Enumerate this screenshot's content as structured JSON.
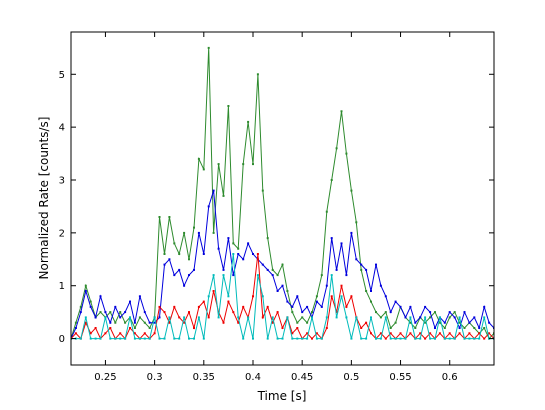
{
  "chart_data": {
    "type": "line",
    "xlabel": "Time [s]",
    "ylabel": "Normalized Rate [counts/s]",
    "xlim": [
      0.215,
      0.645
    ],
    "ylim": [
      -0.5,
      5.8
    ],
    "xticks": [
      0.25,
      0.3,
      0.35,
      0.4,
      0.45,
      0.5,
      0.55,
      0.6
    ],
    "yticks": [
      0,
      1,
      2,
      3,
      4,
      5
    ],
    "grid": false,
    "legend": "none",
    "series": [
      {
        "color": "#2e8b2e",
        "x": [
          0.215,
          0.22,
          0.225,
          0.23,
          0.235,
          0.24,
          0.245,
          0.25,
          0.255,
          0.26,
          0.265,
          0.27,
          0.275,
          0.28,
          0.285,
          0.29,
          0.295,
          0.3,
          0.305,
          0.31,
          0.315,
          0.32,
          0.325,
          0.33,
          0.335,
          0.34,
          0.345,
          0.35,
          0.355,
          0.36,
          0.365,
          0.37,
          0.375,
          0.38,
          0.385,
          0.39,
          0.395,
          0.4,
          0.405,
          0.41,
          0.415,
          0.42,
          0.425,
          0.43,
          0.435,
          0.44,
          0.445,
          0.45,
          0.455,
          0.46,
          0.465,
          0.47,
          0.475,
          0.48,
          0.485,
          0.49,
          0.495,
          0.5,
          0.505,
          0.51,
          0.515,
          0.52,
          0.525,
          0.53,
          0.535,
          0.54,
          0.545,
          0.55,
          0.555,
          0.56,
          0.565,
          0.57,
          0.575,
          0.58,
          0.585,
          0.59,
          0.595,
          0.6,
          0.605,
          0.61,
          0.615,
          0.62,
          0.625,
          0.63,
          0.635,
          0.64,
          0.645
        ],
        "y": [
          0.0,
          0.3,
          0.6,
          1.0,
          0.7,
          0.4,
          0.5,
          0.4,
          0.5,
          0.3,
          0.5,
          0.3,
          0.4,
          0.2,
          0.4,
          0.3,
          0.2,
          0.4,
          2.3,
          1.6,
          2.3,
          1.8,
          1.6,
          2.0,
          1.5,
          2.1,
          3.4,
          3.2,
          5.5,
          2.0,
          3.3,
          2.7,
          4.4,
          1.8,
          1.7,
          3.3,
          4.1,
          3.3,
          5.0,
          2.8,
          1.9,
          1.3,
          1.2,
          1.4,
          0.9,
          0.5,
          0.3,
          0.4,
          0.3,
          0.5,
          0.8,
          1.2,
          2.4,
          3.0,
          3.6,
          4.3,
          3.5,
          2.8,
          2.2,
          1.3,
          0.9,
          0.7,
          0.5,
          0.4,
          0.5,
          0.2,
          0.3,
          0.6,
          0.4,
          0.3,
          0.2,
          0.4,
          0.3,
          0.4,
          0.5,
          0.3,
          0.2,
          0.4,
          0.5,
          0.3,
          0.2,
          0.3,
          0.2,
          0.1,
          0.2,
          0.0,
          0.1
        ]
      },
      {
        "color": "#0000dd",
        "x": [
          0.215,
          0.22,
          0.225,
          0.23,
          0.235,
          0.24,
          0.245,
          0.25,
          0.255,
          0.26,
          0.265,
          0.27,
          0.275,
          0.28,
          0.285,
          0.29,
          0.295,
          0.3,
          0.305,
          0.31,
          0.315,
          0.32,
          0.325,
          0.33,
          0.335,
          0.34,
          0.345,
          0.35,
          0.355,
          0.36,
          0.365,
          0.37,
          0.375,
          0.38,
          0.385,
          0.39,
          0.395,
          0.4,
          0.405,
          0.41,
          0.415,
          0.42,
          0.425,
          0.43,
          0.435,
          0.44,
          0.445,
          0.45,
          0.455,
          0.46,
          0.465,
          0.47,
          0.475,
          0.48,
          0.485,
          0.49,
          0.495,
          0.5,
          0.505,
          0.51,
          0.515,
          0.52,
          0.525,
          0.53,
          0.535,
          0.54,
          0.545,
          0.55,
          0.555,
          0.56,
          0.565,
          0.57,
          0.575,
          0.58,
          0.585,
          0.59,
          0.595,
          0.6,
          0.605,
          0.61,
          0.615,
          0.62,
          0.625,
          0.63,
          0.635,
          0.64,
          0.645
        ],
        "y": [
          0.0,
          0.2,
          0.5,
          0.9,
          0.6,
          0.4,
          0.8,
          0.5,
          0.3,
          0.6,
          0.4,
          0.5,
          0.7,
          0.3,
          0.8,
          0.5,
          0.3,
          0.3,
          0.4,
          1.4,
          1.5,
          1.2,
          1.3,
          1.0,
          1.2,
          1.3,
          2.0,
          1.6,
          2.5,
          2.8,
          1.7,
          1.3,
          1.9,
          1.2,
          1.6,
          1.5,
          1.8,
          1.6,
          1.5,
          1.4,
          1.3,
          1.2,
          0.9,
          1.0,
          0.7,
          0.6,
          0.8,
          0.5,
          0.6,
          0.4,
          0.7,
          0.6,
          1.0,
          1.9,
          1.3,
          1.8,
          1.2,
          2.0,
          1.5,
          1.4,
          1.3,
          0.9,
          1.4,
          1.0,
          0.8,
          0.5,
          0.7,
          0.6,
          0.4,
          0.6,
          0.3,
          0.4,
          0.6,
          0.5,
          0.2,
          0.4,
          0.3,
          0.5,
          0.4,
          0.2,
          0.5,
          0.3,
          0.4,
          0.2,
          0.6,
          0.3,
          0.2
        ]
      },
      {
        "color": "#ee0000",
        "x": [
          0.215,
          0.22,
          0.225,
          0.23,
          0.235,
          0.24,
          0.245,
          0.25,
          0.255,
          0.26,
          0.265,
          0.27,
          0.275,
          0.28,
          0.285,
          0.29,
          0.295,
          0.3,
          0.305,
          0.31,
          0.315,
          0.32,
          0.325,
          0.33,
          0.335,
          0.34,
          0.345,
          0.35,
          0.355,
          0.36,
          0.365,
          0.37,
          0.375,
          0.38,
          0.385,
          0.39,
          0.395,
          0.4,
          0.405,
          0.41,
          0.415,
          0.42,
          0.425,
          0.43,
          0.435,
          0.44,
          0.445,
          0.45,
          0.455,
          0.46,
          0.465,
          0.47,
          0.475,
          0.48,
          0.485,
          0.49,
          0.495,
          0.5,
          0.505,
          0.51,
          0.515,
          0.52,
          0.525,
          0.53,
          0.535,
          0.54,
          0.545,
          0.55,
          0.555,
          0.56,
          0.565,
          0.57,
          0.575,
          0.58,
          0.585,
          0.59,
          0.595,
          0.6,
          0.605,
          0.61,
          0.615,
          0.62,
          0.625,
          0.63,
          0.635,
          0.64,
          0.645
        ],
        "y": [
          0.0,
          0.1,
          0.0,
          0.3,
          0.1,
          0.2,
          0.0,
          0.1,
          0.2,
          0.0,
          0.1,
          0.0,
          0.2,
          0.1,
          0.0,
          0.1,
          0.0,
          0.1,
          0.6,
          0.5,
          0.3,
          0.6,
          0.4,
          0.3,
          0.5,
          0.2,
          0.6,
          0.7,
          0.4,
          0.9,
          0.5,
          0.3,
          0.7,
          0.5,
          0.3,
          0.6,
          0.4,
          0.8,
          1.6,
          0.4,
          0.6,
          0.3,
          0.5,
          0.2,
          0.4,
          0.1,
          0.2,
          0.0,
          0.1,
          0.0,
          0.1,
          0.0,
          0.2,
          0.8,
          0.5,
          1.0,
          0.6,
          0.8,
          0.4,
          0.2,
          0.3,
          0.1,
          0.0,
          0.1,
          0.0,
          0.1,
          0.0,
          0.1,
          0.0,
          0.1,
          0.0,
          0.1,
          0.0,
          0.1,
          0.0,
          0.1,
          0.0,
          0.1,
          0.0,
          0.1,
          0.0,
          0.1,
          0.0,
          0.1,
          0.0,
          0.1,
          0.0
        ]
      },
      {
        "color": "#00bbbb",
        "x": [
          0.215,
          0.22,
          0.225,
          0.23,
          0.235,
          0.24,
          0.245,
          0.25,
          0.255,
          0.26,
          0.265,
          0.27,
          0.275,
          0.28,
          0.285,
          0.29,
          0.295,
          0.3,
          0.305,
          0.31,
          0.315,
          0.32,
          0.325,
          0.33,
          0.335,
          0.34,
          0.345,
          0.35,
          0.355,
          0.36,
          0.365,
          0.37,
          0.375,
          0.38,
          0.385,
          0.39,
          0.395,
          0.4,
          0.405,
          0.41,
          0.415,
          0.42,
          0.425,
          0.43,
          0.435,
          0.44,
          0.445,
          0.45,
          0.455,
          0.46,
          0.465,
          0.47,
          0.475,
          0.48,
          0.485,
          0.49,
          0.495,
          0.5,
          0.505,
          0.51,
          0.515,
          0.52,
          0.525,
          0.53,
          0.535,
          0.54,
          0.545,
          0.55,
          0.555,
          0.56,
          0.565,
          0.57,
          0.575,
          0.58,
          0.585,
          0.59,
          0.595,
          0.6,
          0.605,
          0.61,
          0.615,
          0.62,
          0.625,
          0.63,
          0.635,
          0.64,
          0.645
        ],
        "y": [
          0.0,
          0.0,
          0.0,
          0.4,
          0.0,
          0.0,
          0.0,
          0.4,
          0.0,
          0.0,
          0.0,
          0.0,
          0.4,
          0.0,
          0.0,
          0.0,
          0.0,
          0.4,
          0.0,
          0.0,
          0.4,
          0.0,
          0.0,
          0.4,
          0.0,
          0.0,
          0.4,
          0.0,
          0.8,
          1.2,
          0.4,
          1.2,
          0.8,
          1.6,
          0.4,
          0.0,
          0.4,
          0.0,
          1.2,
          0.8,
          0.0,
          0.4,
          0.0,
          0.0,
          0.4,
          0.0,
          0.0,
          0.0,
          0.0,
          0.4,
          0.0,
          0.0,
          0.4,
          1.2,
          0.4,
          0.8,
          0.4,
          0.0,
          0.4,
          0.0,
          0.0,
          0.4,
          0.0,
          0.0,
          0.4,
          0.0,
          0.0,
          0.0,
          0.0,
          0.4,
          0.0,
          0.0,
          0.4,
          0.0,
          0.0,
          0.4,
          0.0,
          0.0,
          0.0,
          0.4,
          0.0,
          0.0,
          0.0,
          0.0,
          0.4,
          0.0,
          0.0
        ]
      }
    ]
  }
}
